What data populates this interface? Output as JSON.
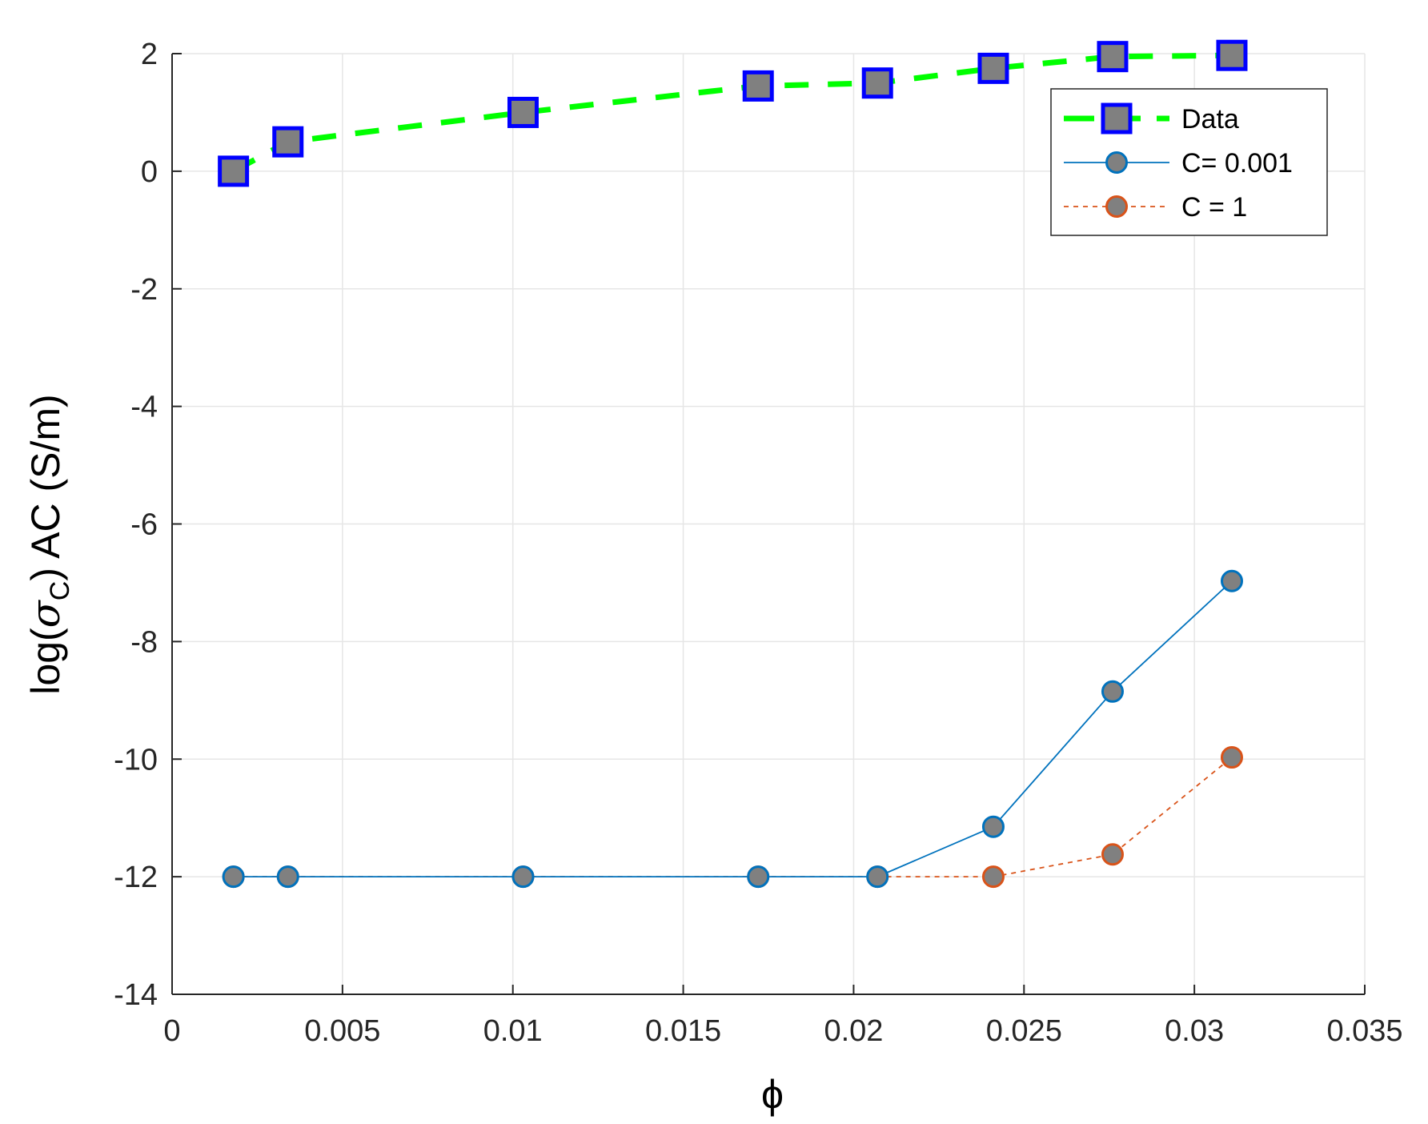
{
  "chart_data": {
    "type": "line",
    "xlabel": "ϕ",
    "ylabel_parts": {
      "pre": "log(",
      "symbol": "σ",
      "sub": "C",
      "post": ") AC (S/m)"
    },
    "xlim": [
      0,
      0.035
    ],
    "ylim": [
      -14,
      2
    ],
    "x_ticks": [
      0,
      0.005,
      0.01,
      0.015,
      0.02,
      0.025,
      0.03,
      0.035
    ],
    "x_tick_labels": [
      "0",
      "0.005",
      "0.01",
      "0.015",
      "0.02",
      "0.025",
      "0.03",
      "0.035"
    ],
    "y_ticks": [
      -14,
      -12,
      -10,
      -8,
      -6,
      -4,
      -2,
      0,
      2
    ],
    "y_tick_labels": [
      "-14",
      "-12",
      "-10",
      "-8",
      "-6",
      "-4",
      "-2",
      "0",
      "2"
    ],
    "grid": true,
    "legend_position": "top-right",
    "x": [
      0.0018,
      0.0034,
      0.0103,
      0.0172,
      0.0207,
      0.0241,
      0.0276,
      0.0311
    ],
    "series": [
      {
        "name": "Data",
        "values": [
          0.0,
          0.5,
          1.0,
          1.45,
          1.5,
          1.75,
          1.95,
          1.97
        ],
        "line_color": "#00ff00",
        "line_style": "dashed",
        "marker": "square",
        "marker_fill": "#808080",
        "marker_edge": "#0000ff"
      },
      {
        "name": "C= 0.001",
        "values": [
          -12,
          -12,
          -12,
          -12,
          -12,
          -11.15,
          -8.85,
          -6.97
        ],
        "line_color": "#0072bd",
        "line_style": "solid",
        "marker": "circle",
        "marker_fill": "#808080",
        "marker_edge": "#0072bd"
      },
      {
        "name": "C = 1",
        "values": [
          -12,
          -12,
          -12,
          -12,
          -12,
          -12,
          -11.62,
          -9.97
        ],
        "line_color": "#d95319",
        "line_style": "dotted",
        "marker": "circle",
        "marker_fill": "#808080",
        "marker_edge": "#d95319"
      }
    ]
  }
}
